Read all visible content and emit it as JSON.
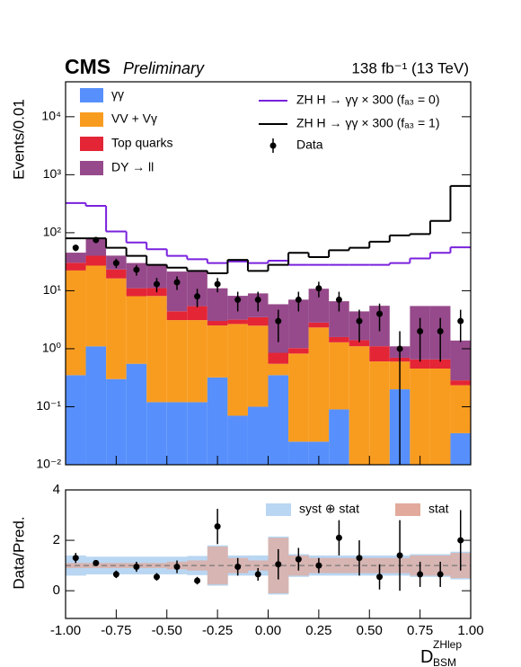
{
  "chart_data": [
    {
      "type": "histogram",
      "experiment": "CMS",
      "status": "Preliminary",
      "lumi": "138 fb⁻¹ (13 TeV)",
      "ylabel": "Events/0.01",
      "bins": [
        -1,
        -0.9,
        -0.8,
        -0.7,
        -0.6,
        -0.5,
        -0.4,
        -0.3,
        -0.2,
        -0.1,
        0,
        0.1,
        0.2,
        0.3,
        0.4,
        0.5,
        0.6,
        0.7,
        0.8,
        0.9,
        1
      ],
      "xlim": [
        -1,
        1
      ],
      "ylim": [
        0.01,
        40000
      ],
      "log_y": true,
      "yticks": [
        {
          "value": 0.01,
          "label": "10⁻²"
        },
        {
          "value": 0.1,
          "label": "10⁻¹"
        },
        {
          "value": 1,
          "label": "10⁰"
        },
        {
          "value": 10,
          "label": "10¹"
        },
        {
          "value": 100,
          "label": "10²"
        },
        {
          "value": 1000,
          "label": "10³"
        },
        {
          "value": 10000,
          "label": "10⁴"
        }
      ],
      "series": [
        {
          "name": "γγ",
          "color": "#5790fc",
          "values": [
            0.35,
            1.1,
            0.3,
            0.55,
            0.12,
            0.12,
            0.12,
            0.32,
            0.07,
            0.1,
            0.35,
            0.025,
            0.025,
            0.09,
            0.005,
            0.005,
            0.2,
            0.005,
            0.005,
            0.035
          ]
        },
        {
          "name": "VV + Vγ",
          "color": "#f89c20",
          "values": [
            22,
            26,
            16,
            7.5,
            8,
            3,
            3,
            2.2,
            2.6,
            2.4,
            0.2,
            0.8,
            2.3,
            1.2,
            1.1,
            0.6,
            0.4,
            0.45,
            0.45,
            0.2
          ]
        },
        {
          "name": "Top quarks",
          "color": "#e42536",
          "values": [
            8,
            13,
            7,
            3,
            3,
            1.3,
            2.3,
            0.5,
            0.5,
            1,
            0.3,
            0.2,
            0.5,
            0.3,
            0.3,
            0.5,
            0.1,
            0.2,
            0.2,
            0.05
          ]
        },
        {
          "name": "DY → ll",
          "color": "#964a8b",
          "values": [
            15,
            40,
            17,
            19,
            17,
            17,
            16,
            8,
            5,
            5.5,
            5,
            6,
            8,
            5,
            3,
            4.4,
            0.4,
            4.8,
            4.8,
            1.1
          ]
        }
      ],
      "signals": [
        {
          "name": "ZH H → γγ × 300 (fₐ₃ = 0)",
          "color": "#7a21dd",
          "values": [
            325,
            290,
            105,
            68,
            52,
            40,
            35,
            30,
            32,
            30,
            33,
            28,
            28,
            28,
            28,
            28,
            30,
            36,
            45,
            56
          ]
        },
        {
          "name": "ZH H → γγ × 300 (fₐ₃ = 1)",
          "color": "#000000",
          "values": [
            80,
            80,
            55,
            40,
            28,
            25,
            22,
            20,
            34,
            22,
            28,
            45,
            38,
            50,
            55,
            70,
            90,
            95,
            160,
            640
          ]
        }
      ],
      "data": {
        "name": "Data",
        "color": "#000000",
        "values": [
          55,
          75,
          30,
          23,
          13,
          14,
          8,
          13,
          7,
          7,
          3,
          7,
          11,
          7,
          3,
          4,
          1,
          2,
          2,
          3
        ],
        "errors": [
          7,
          9,
          5.5,
          4.8,
          3.6,
          3.7,
          2.8,
          3.6,
          2.6,
          2.6,
          1.7,
          2.6,
          3.3,
          2.6,
          1.7,
          2,
          1,
          1.4,
          1.4,
          1.7
        ]
      }
    },
    {
      "type": "ratio",
      "ylabel": "Data/Pred.",
      "xlabel": {
        "base": "D",
        "sup": "ZHlep",
        "sub": "BSM"
      },
      "xlim": [
        -1,
        1
      ],
      "xticks": [
        {
          "value": -1,
          "label": "-1.00"
        },
        {
          "value": -0.75,
          "label": "-0.75"
        },
        {
          "value": -0.5,
          "label": "-0.50"
        },
        {
          "value": -0.25,
          "label": "-0.25"
        },
        {
          "value": 0,
          "label": "0.00"
        },
        {
          "value": 0.25,
          "label": "0.25"
        },
        {
          "value": 0.5,
          "label": "0.50"
        },
        {
          "value": 0.75,
          "label": "0.75"
        },
        {
          "value": 1,
          "label": "1.00"
        }
      ],
      "ylim": [
        -1.1,
        4
      ],
      "yticks": [
        0,
        2,
        4
      ],
      "reference": 1,
      "bands": [
        {
          "name": "syst ⊕ stat",
          "color": "#b9d6f2",
          "values": [
            0.4,
            0.35,
            0.35,
            0.35,
            0.35,
            0.35,
            0.38,
            0.8,
            0.4,
            0.4,
            1.15,
            0.45,
            0.4,
            0.4,
            0.4,
            0.4,
            0.4,
            0.45,
            0.45,
            0.55
          ]
        },
        {
          "name": "stat",
          "color": "#e2aa9c",
          "values": [
            0.1,
            0.1,
            0.1,
            0.1,
            0.1,
            0.15,
            0.2,
            0.75,
            0.3,
            0.2,
            1.1,
            0.4,
            0.3,
            0.3,
            0.3,
            0.3,
            0.3,
            0.4,
            0.4,
            0.5
          ]
        }
      ],
      "data": {
        "values": [
          1.3,
          1.1,
          0.65,
          0.95,
          0.55,
          0.95,
          0.4,
          2.55,
          0.95,
          0.65,
          1.05,
          1.25,
          1.0,
          2.1,
          1.3,
          0.55,
          1.4,
          0.65,
          0.65,
          2.0
        ],
        "errors": [
          0.2,
          0.1,
          0.15,
          0.2,
          0.15,
          0.25,
          0.15,
          0.7,
          0.35,
          0.25,
          0.6,
          0.45,
          0.3,
          0.7,
          0.7,
          0.5,
          1.4,
          0.5,
          0.5,
          1.2
        ]
      }
    }
  ]
}
